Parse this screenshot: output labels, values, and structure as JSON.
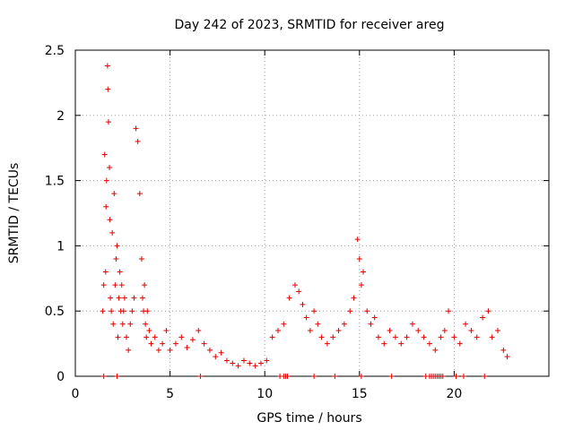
{
  "chart_data": {
    "type": "scatter",
    "title": "Day 242 of 2023, SRMTID for receiver areg",
    "xlabel": "GPS time / hours",
    "ylabel": "SRMTID / TECUs",
    "xlim": [
      0,
      25
    ],
    "ylim": [
      0,
      2.5
    ],
    "x_ticks": [
      0,
      5,
      10,
      15,
      20
    ],
    "x_tick_labels": [
      "0",
      "5",
      "10",
      "15",
      "20"
    ],
    "y_ticks": [
      0,
      0.5,
      1,
      1.5,
      2,
      2.5
    ],
    "y_tick_labels": [
      "0",
      "0.5",
      "1",
      "1.5",
      "2",
      "2.5"
    ],
    "grid": true,
    "legend": "none",
    "marker": "+",
    "color": "#e00000",
    "series": [
      {
        "name": "SRMTID",
        "x": [
          1.45,
          1.5,
          1.55,
          1.6,
          1.62,
          1.65,
          1.7,
          1.72,
          1.75,
          1.8,
          1.82,
          1.85,
          1.9,
          1.95,
          2.0,
          2.05,
          2.1,
          2.15,
          2.2,
          2.25,
          2.3,
          2.35,
          2.4,
          2.45,
          2.5,
          2.55,
          2.6,
          2.7,
          2.8,
          2.9,
          3.0,
          3.1,
          3.2,
          3.3,
          3.4,
          3.5,
          3.55,
          3.6,
          3.65,
          3.7,
          3.75,
          3.8,
          3.9,
          4.0,
          4.2,
          4.4,
          4.6,
          4.8,
          5.0,
          5.3,
          5.6,
          5.9,
          6.2,
          6.5,
          6.8,
          7.1,
          7.4,
          7.7,
          8.0,
          8.3,
          8.6,
          8.9,
          9.2,
          9.5,
          9.8,
          10.1,
          10.4,
          10.7,
          11.0,
          11.3,
          11.6,
          11.8,
          12.0,
          12.2,
          12.4,
          12.6,
          12.8,
          13.0,
          13.3,
          13.6,
          13.9,
          14.2,
          14.5,
          14.7,
          14.9,
          15.0,
          15.1,
          15.2,
          15.4,
          15.6,
          15.8,
          16.0,
          16.3,
          16.6,
          16.9,
          17.2,
          17.5,
          17.8,
          18.1,
          18.4,
          18.7,
          19.0,
          19.3,
          19.5,
          19.7,
          20.0,
          20.3,
          20.6,
          20.9,
          21.2,
          21.5,
          21.8,
          22.0,
          22.3,
          22.6,
          22.8
        ],
        "y": [
          0.5,
          0.7,
          1.7,
          0.8,
          1.3,
          1.5,
          2.38,
          2.2,
          1.95,
          1.6,
          1.2,
          0.6,
          0.5,
          1.1,
          0.4,
          1.4,
          0.7,
          0.9,
          1.0,
          0.3,
          0.6,
          0.8,
          0.5,
          0.7,
          0.4,
          0.5,
          0.6,
          0.3,
          0.2,
          0.4,
          0.5,
          0.6,
          1.9,
          1.8,
          1.4,
          0.9,
          0.6,
          0.5,
          0.7,
          0.4,
          0.3,
          0.5,
          0.35,
          0.25,
          0.3,
          0.2,
          0.25,
          0.35,
          0.2,
          0.25,
          0.3,
          0.22,
          0.28,
          0.35,
          0.25,
          0.2,
          0.15,
          0.18,
          0.12,
          0.1,
          0.08,
          0.12,
          0.1,
          0.08,
          0.1,
          0.12,
          0.3,
          0.35,
          0.4,
          0.6,
          0.7,
          0.65,
          0.55,
          0.45,
          0.35,
          0.5,
          0.4,
          0.3,
          0.25,
          0.3,
          0.35,
          0.4,
          0.5,
          0.6,
          1.05,
          0.9,
          0.7,
          0.8,
          0.5,
          0.4,
          0.45,
          0.3,
          0.25,
          0.35,
          0.3,
          0.25,
          0.3,
          0.4,
          0.35,
          0.3,
          0.25,
          0.2,
          0.3,
          0.35,
          0.5,
          0.3,
          0.25,
          0.4,
          0.35,
          0.3,
          0.45,
          0.5,
          0.3,
          0.35,
          0.2,
          0.15
        ]
      }
    ],
    "zero_markers_x": [
      1.5,
      2.2,
      6.6,
      10.8,
      11.0,
      11.1,
      11.2,
      12.6,
      13.7,
      15.1,
      16.7,
      18.5,
      18.7,
      18.8,
      18.9,
      19.0,
      19.1,
      19.2,
      19.3,
      19.4,
      20.1,
      20.5,
      21.6
    ]
  }
}
